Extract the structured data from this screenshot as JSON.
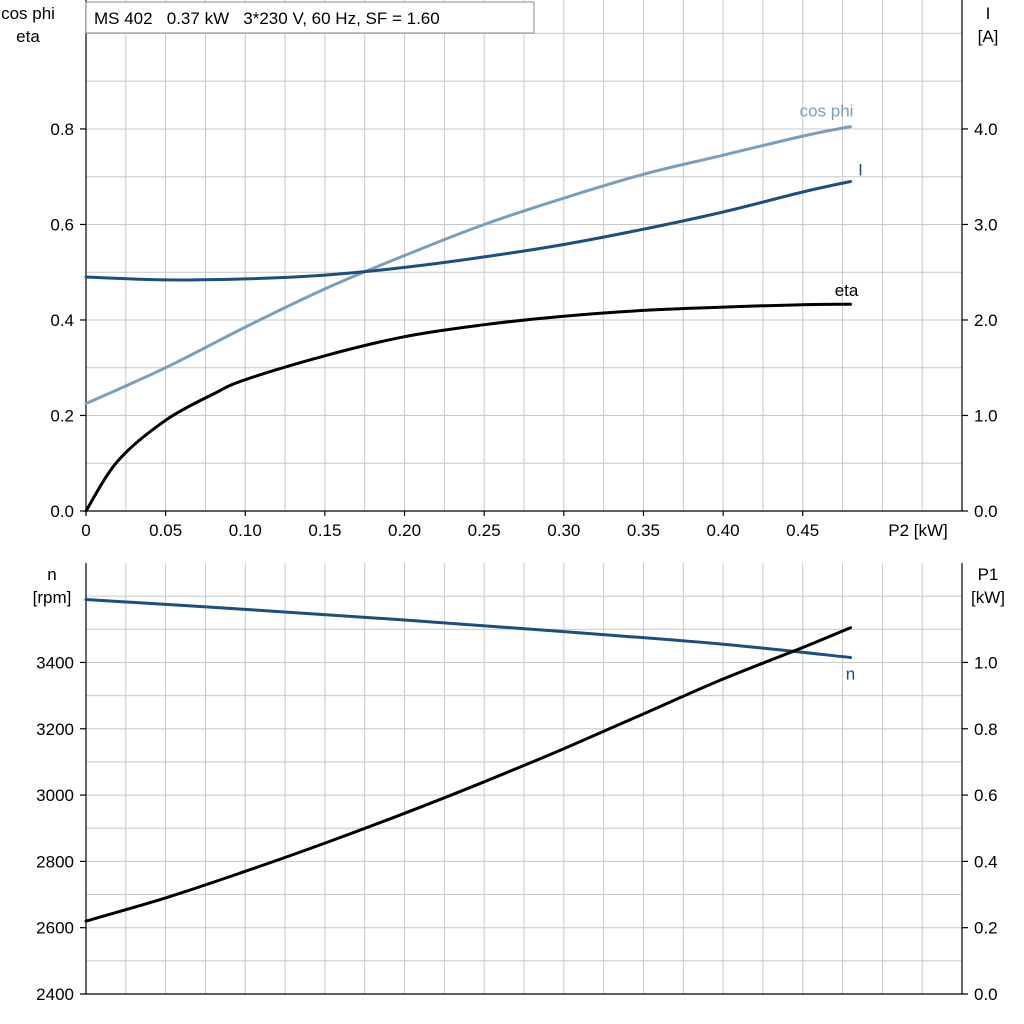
{
  "chart_data": [
    {
      "type": "line",
      "title": "MS 402   0.37 kW   3*230 V, 60 Hz, SF = 1.60",
      "xlabel": "P2 [kW]",
      "xlim": [
        0,
        0.55
      ],
      "xticks": [
        0,
        0.05,
        0.1,
        0.15,
        0.2,
        0.25,
        0.3,
        0.35,
        0.4,
        0.45
      ],
      "xtick_labels": [
        "0",
        "0.05",
        "0.10",
        "0.15",
        "0.20",
        "0.25",
        "0.30",
        "0.35",
        "0.40",
        "0.45"
      ],
      "y_left": {
        "label_lines": [
          "cos phi",
          "eta"
        ],
        "lim": [
          0,
          1.07
        ],
        "ticks": [
          0,
          0.2,
          0.4,
          0.6,
          0.8
        ],
        "tick_labels": [
          "0.0",
          "0.2",
          "0.4",
          "0.6",
          "0.8"
        ]
      },
      "y_right": {
        "label_lines": [
          "I",
          "[A]"
        ],
        "lim": [
          0,
          5.35
        ],
        "ticks": [
          0,
          1,
          2,
          3,
          4
        ],
        "tick_labels": [
          "0.0",
          "1.0",
          "2.0",
          "3.0",
          "4.0"
        ]
      },
      "grid": true,
      "series": [
        {
          "name": "cos phi",
          "axis": "left",
          "color": "#7b9ebb",
          "x": [
            0,
            0.05,
            0.1,
            0.15,
            0.2,
            0.25,
            0.3,
            0.35,
            0.4,
            0.45,
            0.48
          ],
          "y": [
            0.225,
            0.3,
            0.385,
            0.465,
            0.535,
            0.6,
            0.655,
            0.705,
            0.745,
            0.785,
            0.805
          ]
        },
        {
          "name": "I",
          "axis": "right",
          "color": "#1a4f80",
          "x": [
            0,
            0.05,
            0.1,
            0.15,
            0.2,
            0.25,
            0.3,
            0.35,
            0.4,
            0.45,
            0.48
          ],
          "y": [
            2.45,
            2.42,
            2.43,
            2.47,
            2.55,
            2.66,
            2.79,
            2.95,
            3.13,
            3.34,
            3.45
          ]
        },
        {
          "name": "eta",
          "axis": "left",
          "color": "#000000",
          "x": [
            0,
            0.02,
            0.05,
            0.08,
            0.1,
            0.15,
            0.2,
            0.25,
            0.3,
            0.35,
            0.4,
            0.45,
            0.48
          ],
          "y": [
            0,
            0.105,
            0.19,
            0.245,
            0.275,
            0.325,
            0.365,
            0.39,
            0.408,
            0.42,
            0.427,
            0.432,
            0.433
          ]
        }
      ]
    },
    {
      "type": "line",
      "xlim": [
        0,
        0.55
      ],
      "y_left": {
        "label_lines": [
          "n",
          "[rpm]"
        ],
        "lim": [
          2400,
          3700
        ],
        "ticks": [
          2400,
          2600,
          2800,
          3000,
          3200,
          3400
        ],
        "tick_labels": [
          "2400",
          "2600",
          "2800",
          "3000",
          "3200",
          "3400"
        ]
      },
      "y_right": {
        "label_lines": [
          "P1",
          "[kW]"
        ],
        "lim": [
          0,
          1.3
        ],
        "ticks": [
          0,
          0.2,
          0.4,
          0.6,
          0.8,
          1.0
        ],
        "tick_labels": [
          "0.0",
          "0.2",
          "0.4",
          "0.6",
          "0.8",
          "1.0"
        ]
      },
      "grid": true,
      "series": [
        {
          "name": "n",
          "axis": "left",
          "color": "#1a4f80",
          "x": [
            0,
            0.1,
            0.2,
            0.3,
            0.4,
            0.48
          ],
          "y": [
            3590,
            3560,
            3528,
            3493,
            3455,
            3415
          ]
        },
        {
          "name": "",
          "axis": "right",
          "color": "#000000",
          "x": [
            0,
            0.05,
            0.1,
            0.15,
            0.2,
            0.25,
            0.3,
            0.35,
            0.4,
            0.45,
            0.48
          ],
          "y": [
            0.22,
            0.29,
            0.37,
            0.455,
            0.545,
            0.64,
            0.74,
            0.845,
            0.95,
            1.045,
            1.105
          ]
        }
      ]
    }
  ]
}
